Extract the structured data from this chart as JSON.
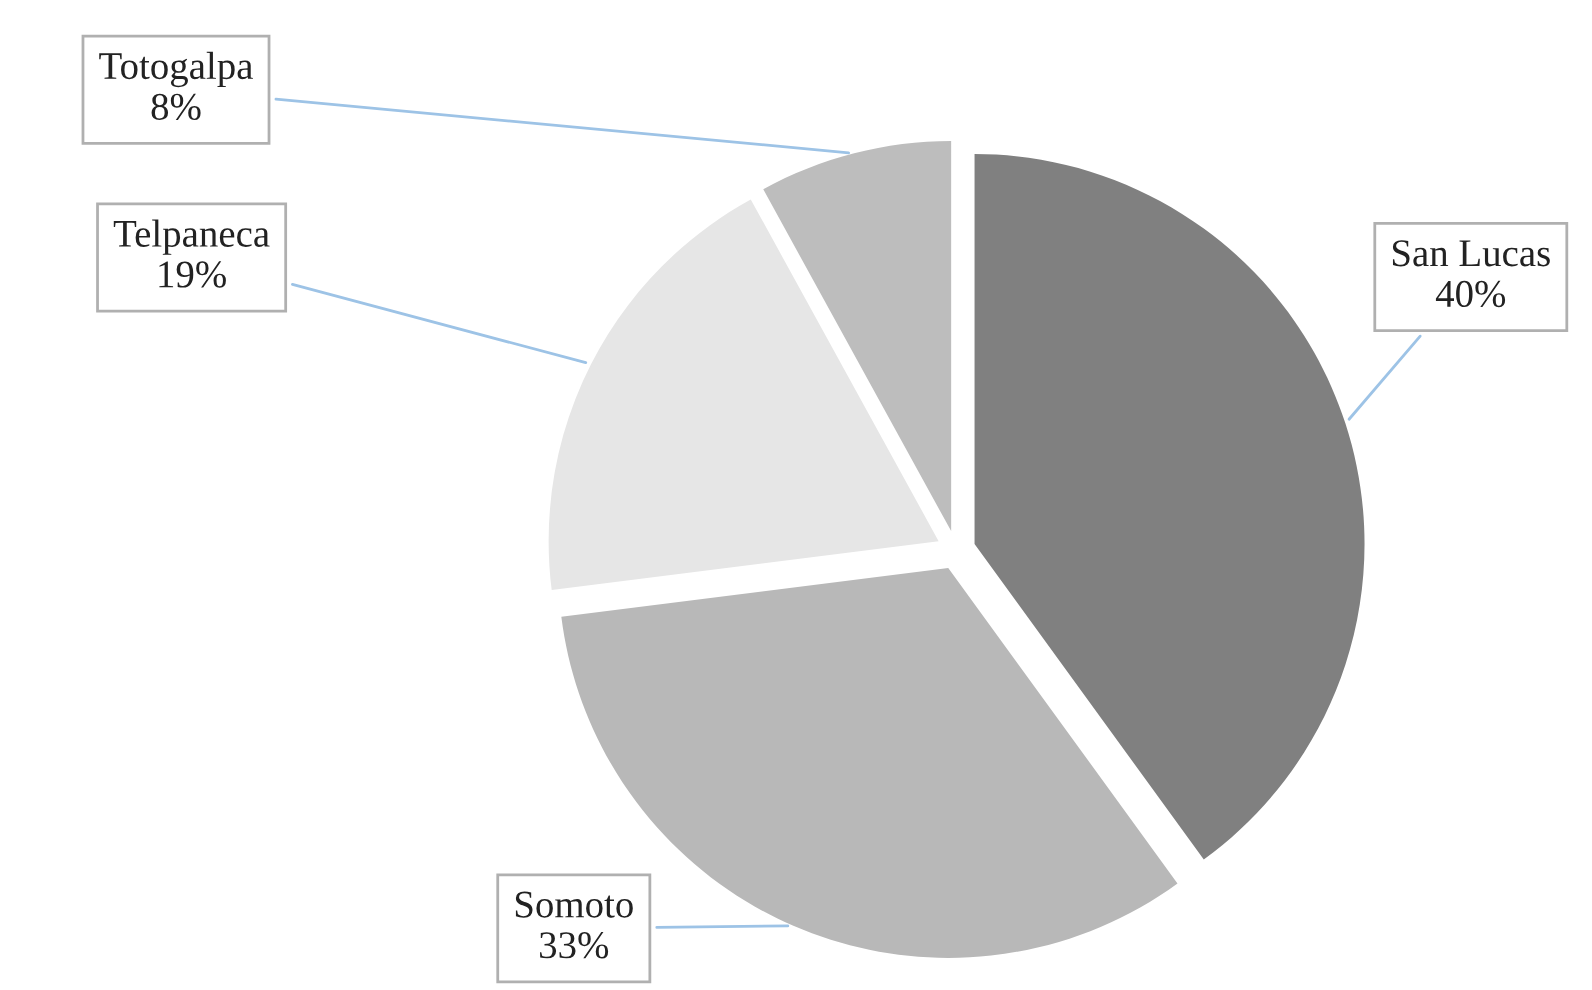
{
  "chart_data": {
    "type": "pie",
    "categories": [
      "San Lucas",
      "Somoto",
      "Telpaneca",
      "Totogalpa"
    ],
    "values": [
      40,
      33,
      19,
      8
    ],
    "value_labels": [
      "40%",
      "33%",
      "19%",
      "8%"
    ],
    "colors": [
      "#808080",
      "#b8b8b8",
      "#e6e6e6",
      "#bdbdbd"
    ],
    "legend": false
  }
}
